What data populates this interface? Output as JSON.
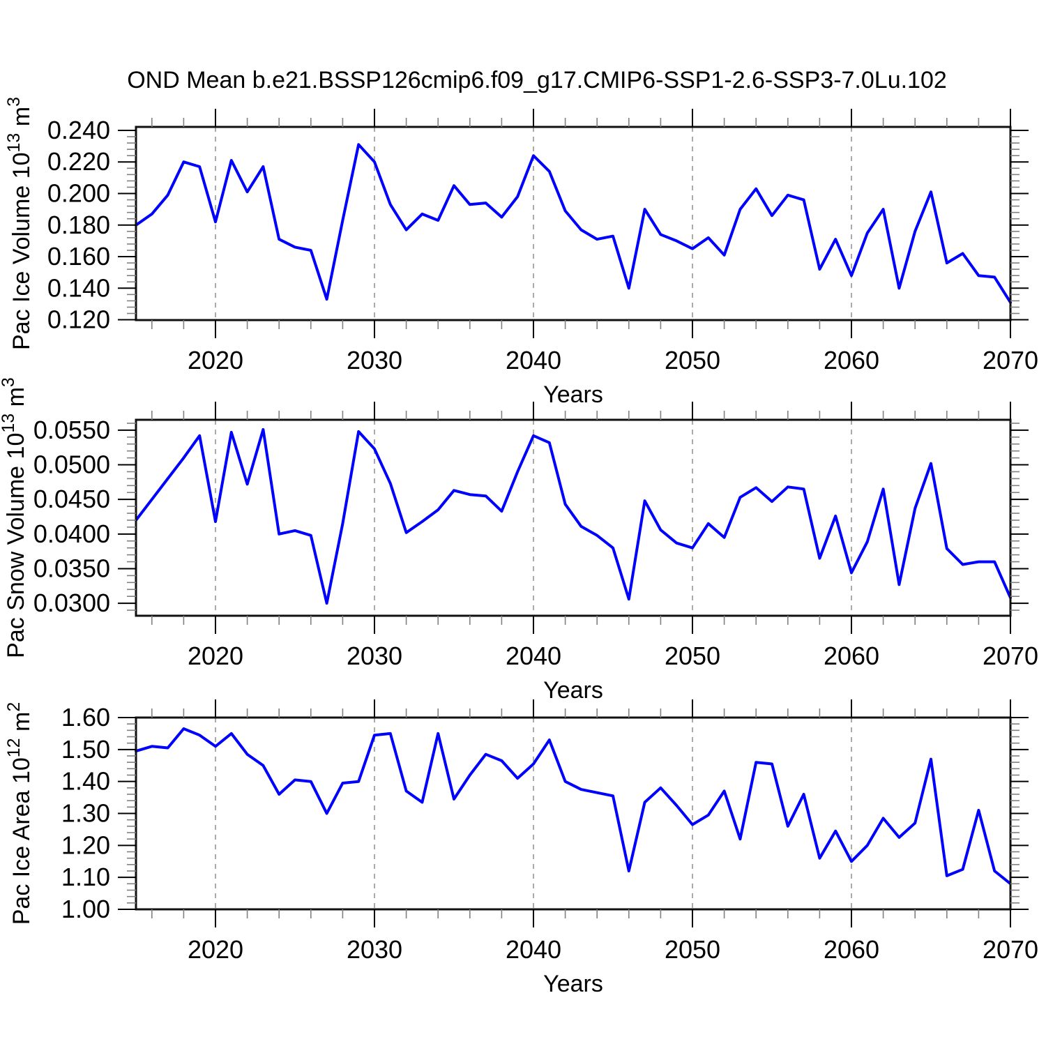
{
  "title": "OND Mean b.e21.BSSP126cmip6.f09_g17.CMIP6-SSP1-2.6-SSP3-7.0Lu.102",
  "colors": {
    "line": "#0000ff",
    "grid": "#aaaaaa",
    "frame": "#111111",
    "minor_tick": "#808080",
    "major_tick": "#000000",
    "text": "#000000",
    "background": "#ffffff"
  },
  "chart_data": [
    {
      "type": "line",
      "name": "pac-ice-volume",
      "title": "OND Mean b.e21.BSSP126cmip6.f09_g17.CMIP6-SSP1-2.6-SSP3-7.0Lu.102",
      "ylabel_segments": [
        {
          "t": "Pac Ice Volume 10"
        },
        {
          "sup": "13"
        },
        {
          "t": " m"
        },
        {
          "sup": "3"
        }
      ],
      "xlabel": "Years",
      "legend": "none",
      "grid": "vertical-dashed",
      "xlim": [
        2015,
        2070
      ],
      "ylim": [
        0.1198,
        0.2422
      ],
      "xticks": [
        2020,
        2030,
        2040,
        2050,
        2060,
        2070
      ],
      "xtick_labels": [
        "2020",
        "2030",
        "2040",
        "2050",
        "2060",
        "2070"
      ],
      "x_minor_step": 2,
      "grid_years": [
        2020,
        2030,
        2040,
        2050,
        2060
      ],
      "ytick_values": [
        0.24,
        0.22,
        0.2,
        0.18,
        0.16,
        0.14,
        0.12
      ],
      "ytick_labels": [
        "0.240",
        "0.220",
        "0.200",
        "0.180",
        "0.160",
        "0.140",
        "0.120"
      ],
      "y_minor_step": 0.004,
      "x": [
        2015,
        2016,
        2017,
        2018,
        2019,
        2020,
        2021,
        2022,
        2023,
        2024,
        2025,
        2026,
        2027,
        2028,
        2029,
        2030,
        2031,
        2032,
        2033,
        2034,
        2035,
        2036,
        2037,
        2038,
        2039,
        2040,
        2041,
        2042,
        2043,
        2044,
        2045,
        2046,
        2047,
        2048,
        2049,
        2050,
        2051,
        2052,
        2053,
        2054,
        2055,
        2056,
        2057,
        2058,
        2059,
        2060,
        2061,
        2062,
        2063,
        2064,
        2065,
        2066,
        2067,
        2068,
        2069,
        2070
      ],
      "values": [
        0.18,
        0.187,
        0.199,
        0.22,
        0.217,
        0.182,
        0.221,
        0.201,
        0.217,
        0.171,
        0.166,
        0.164,
        0.133,
        0.183,
        0.231,
        0.22,
        0.193,
        0.177,
        0.187,
        0.183,
        0.205,
        0.193,
        0.194,
        0.185,
        0.198,
        0.224,
        0.214,
        0.189,
        0.177,
        0.171,
        0.173,
        0.14,
        0.19,
        0.174,
        0.17,
        0.165,
        0.172,
        0.161,
        0.19,
        0.203,
        0.186,
        0.199,
        0.196,
        0.152,
        0.171,
        0.148,
        0.175,
        0.19,
        0.14,
        0.176,
        0.201,
        0.156,
        0.162,
        0.148,
        0.147,
        0.131
      ]
    },
    {
      "type": "line",
      "name": "pac-snow-volume",
      "title": "",
      "ylabel_segments": [
        {
          "t": "Pac Snow Volume 10"
        },
        {
          "sup": "13"
        },
        {
          "t": " m"
        },
        {
          "sup": "3"
        }
      ],
      "xlabel": "Years",
      "legend": "none",
      "grid": "vertical-dashed",
      "xlim": [
        2015,
        2070
      ],
      "ylim": [
        0.0282,
        0.0565
      ],
      "xticks": [
        2020,
        2030,
        2040,
        2050,
        2060,
        2070
      ],
      "xtick_labels": [
        "2020",
        "2030",
        "2040",
        "2050",
        "2060",
        "2070"
      ],
      "x_minor_step": 2,
      "grid_years": [
        2020,
        2030,
        2040,
        2050,
        2060
      ],
      "ytick_values": [
        0.055,
        0.05,
        0.045,
        0.04,
        0.035,
        0.03
      ],
      "ytick_labels": [
        "0.0550",
        "0.0500",
        "0.0450",
        "0.0400",
        "0.0350",
        "0.0300"
      ],
      "y_minor_step": 0.001,
      "x": [
        2015,
        2016,
        2017,
        2018,
        2019,
        2020,
        2021,
        2022,
        2023,
        2024,
        2025,
        2026,
        2027,
        2028,
        2029,
        2030,
        2031,
        2032,
        2033,
        2034,
        2035,
        2036,
        2037,
        2038,
        2039,
        2040,
        2041,
        2042,
        2043,
        2044,
        2045,
        2046,
        2047,
        2048,
        2049,
        2050,
        2051,
        2052,
        2053,
        2054,
        2055,
        2056,
        2057,
        2058,
        2059,
        2060,
        2061,
        2062,
        2063,
        2064,
        2065,
        2066,
        2067,
        2068,
        2069,
        2070
      ],
      "values": [
        0.042,
        0.045,
        0.048,
        0.051,
        0.0542,
        0.0418,
        0.0547,
        0.0472,
        0.0551,
        0.04,
        0.0405,
        0.0398,
        0.03,
        0.0415,
        0.0548,
        0.0523,
        0.0473,
        0.0402,
        0.0418,
        0.0435,
        0.0463,
        0.0457,
        0.0455,
        0.0433,
        0.049,
        0.0542,
        0.0532,
        0.0443,
        0.0411,
        0.0398,
        0.038,
        0.0306,
        0.0448,
        0.0406,
        0.0387,
        0.038,
        0.0415,
        0.0395,
        0.0453,
        0.0467,
        0.0447,
        0.0468,
        0.0465,
        0.0365,
        0.0426,
        0.0344,
        0.0389,
        0.0465,
        0.0327,
        0.0437,
        0.0502,
        0.0379,
        0.0356,
        0.036,
        0.036,
        0.0308
      ]
    },
    {
      "type": "line",
      "name": "pac-ice-area",
      "title": "",
      "ylabel_segments": [
        {
          "t": "Pac Ice Area 10"
        },
        {
          "sup": "12"
        },
        {
          "t": " m"
        },
        {
          "sup": "2"
        }
      ],
      "xlabel": "Years",
      "legend": "none",
      "grid": "vertical-dashed",
      "xlim": [
        2015,
        2070
      ],
      "ylim": [
        1.0,
        1.6
      ],
      "xticks": [
        2020,
        2030,
        2040,
        2050,
        2060,
        2070
      ],
      "xtick_labels": [
        "2020",
        "2030",
        "2040",
        "2050",
        "2060",
        "2070"
      ],
      "x_minor_step": 2,
      "grid_years": [
        2020,
        2030,
        2040,
        2050,
        2060
      ],
      "ytick_values": [
        1.6,
        1.5,
        1.4,
        1.3,
        1.2,
        1.1,
        1.0
      ],
      "ytick_labels": [
        "1.60",
        "1.50",
        "1.40",
        "1.30",
        "1.20",
        "1.10",
        "1.00"
      ],
      "y_minor_step": 0.02,
      "x": [
        2015,
        2016,
        2017,
        2018,
        2019,
        2020,
        2021,
        2022,
        2023,
        2024,
        2025,
        2026,
        2027,
        2028,
        2029,
        2030,
        2031,
        2032,
        2033,
        2034,
        2035,
        2036,
        2037,
        2038,
        2039,
        2040,
        2041,
        2042,
        2043,
        2044,
        2045,
        2046,
        2047,
        2048,
        2049,
        2050,
        2051,
        2052,
        2053,
        2054,
        2055,
        2056,
        2057,
        2058,
        2059,
        2060,
        2061,
        2062,
        2063,
        2064,
        2065,
        2066,
        2067,
        2068,
        2069,
        2070
      ],
      "values": [
        1.495,
        1.51,
        1.505,
        1.565,
        1.545,
        1.51,
        1.55,
        1.485,
        1.45,
        1.36,
        1.405,
        1.4,
        1.3,
        1.395,
        1.4,
        1.545,
        1.55,
        1.37,
        1.335,
        1.55,
        1.345,
        1.42,
        1.485,
        1.465,
        1.41,
        1.455,
        1.53,
        1.4,
        1.375,
        1.365,
        1.355,
        1.12,
        1.335,
        1.38,
        1.325,
        1.265,
        1.295,
        1.37,
        1.22,
        1.46,
        1.455,
        1.26,
        1.36,
        1.16,
        1.245,
        1.15,
        1.2,
        1.285,
        1.225,
        1.27,
        1.47,
        1.105,
        1.125,
        1.31,
        1.12,
        1.08
      ]
    }
  ]
}
